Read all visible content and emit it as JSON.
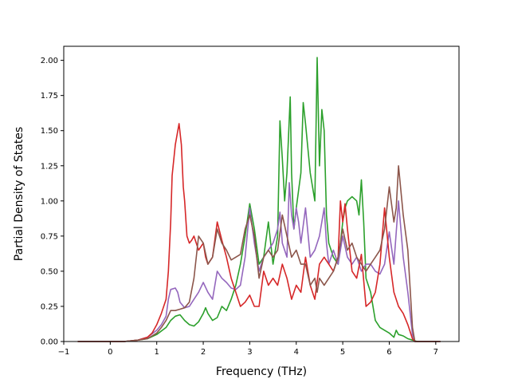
{
  "chart_data": {
    "type": "line",
    "xlabel": "Frequency (THz)",
    "ylabel": "Partial Density of States",
    "xlim": [
      -1.0,
      7.5
    ],
    "ylim": [
      0.0,
      2.1
    ],
    "xticks": [
      -1,
      0,
      1,
      2,
      3,
      4,
      5,
      6,
      7
    ],
    "xtick_labels": [
      "−1",
      "0",
      "1",
      "2",
      "3",
      "4",
      "5",
      "6",
      "7"
    ],
    "yticks": [
      0.0,
      0.25,
      0.5,
      0.75,
      1.0,
      1.25,
      1.5,
      1.75,
      2.0
    ],
    "ytick_labels": [
      "0.00",
      "0.25",
      "0.50",
      "0.75",
      "1.00",
      "1.25",
      "1.50",
      "1.75",
      "2.00"
    ],
    "grid": false,
    "series": [
      {
        "color": "#2ca02c",
        "points": [
          [
            -0.7,
            0
          ],
          [
            0.3,
            0
          ],
          [
            0.6,
            0.01
          ],
          [
            0.8,
            0.02
          ],
          [
            1.0,
            0.05
          ],
          [
            1.2,
            0.1
          ],
          [
            1.3,
            0.15
          ],
          [
            1.4,
            0.18
          ],
          [
            1.5,
            0.19
          ],
          [
            1.6,
            0.15
          ],
          [
            1.7,
            0.12
          ],
          [
            1.8,
            0.11
          ],
          [
            1.9,
            0.14
          ],
          [
            2.0,
            0.2
          ],
          [
            2.05,
            0.24
          ],
          [
            2.1,
            0.2
          ],
          [
            2.2,
            0.15
          ],
          [
            2.3,
            0.17
          ],
          [
            2.4,
            0.25
          ],
          [
            2.5,
            0.22
          ],
          [
            2.6,
            0.3
          ],
          [
            2.7,
            0.4
          ],
          [
            2.8,
            0.55
          ],
          [
            2.9,
            0.75
          ],
          [
            3.0,
            0.98
          ],
          [
            3.1,
            0.8
          ],
          [
            3.2,
            0.55
          ],
          [
            3.3,
            0.6
          ],
          [
            3.4,
            0.85
          ],
          [
            3.5,
            0.55
          ],
          [
            3.6,
            0.75
          ],
          [
            3.65,
            1.57
          ],
          [
            3.7,
            1.3
          ],
          [
            3.75,
            1.0
          ],
          [
            3.8,
            1.2
          ],
          [
            3.87,
            1.74
          ],
          [
            3.9,
            1.2
          ],
          [
            3.95,
            0.8
          ],
          [
            4.0,
            0.95
          ],
          [
            4.1,
            1.2
          ],
          [
            4.15,
            1.7
          ],
          [
            4.2,
            1.55
          ],
          [
            4.3,
            1.2
          ],
          [
            4.4,
            1.0
          ],
          [
            4.45,
            2.02
          ],
          [
            4.5,
            1.25
          ],
          [
            4.55,
            1.65
          ],
          [
            4.6,
            1.5
          ],
          [
            4.65,
            0.9
          ],
          [
            4.7,
            0.7
          ],
          [
            4.8,
            0.6
          ],
          [
            4.9,
            0.55
          ],
          [
            5.0,
            0.85
          ],
          [
            5.05,
            0.95
          ],
          [
            5.1,
            1.0
          ],
          [
            5.2,
            1.03
          ],
          [
            5.3,
            1.0
          ],
          [
            5.35,
            0.9
          ],
          [
            5.4,
            1.15
          ],
          [
            5.45,
            0.85
          ],
          [
            5.5,
            0.45
          ],
          [
            5.6,
            0.35
          ],
          [
            5.7,
            0.15
          ],
          [
            5.8,
            0.1
          ],
          [
            5.9,
            0.08
          ],
          [
            6.0,
            0.06
          ],
          [
            6.1,
            0.03
          ],
          [
            6.15,
            0.08
          ],
          [
            6.2,
            0.05
          ],
          [
            6.3,
            0.04
          ],
          [
            6.4,
            0.02
          ],
          [
            6.5,
            0.01
          ],
          [
            6.6,
            0
          ],
          [
            7.1,
            0
          ]
        ]
      },
      {
        "color": "#9467bd",
        "points": [
          [
            -0.7,
            0
          ],
          [
            0.3,
            0
          ],
          [
            0.6,
            0.01
          ],
          [
            0.8,
            0.03
          ],
          [
            1.0,
            0.08
          ],
          [
            1.1,
            0.12
          ],
          [
            1.2,
            0.18
          ],
          [
            1.25,
            0.3
          ],
          [
            1.3,
            0.37
          ],
          [
            1.4,
            0.38
          ],
          [
            1.45,
            0.35
          ],
          [
            1.5,
            0.28
          ],
          [
            1.6,
            0.24
          ],
          [
            1.7,
            0.25
          ],
          [
            1.8,
            0.3
          ],
          [
            1.9,
            0.35
          ],
          [
            2.0,
            0.42
          ],
          [
            2.1,
            0.35
          ],
          [
            2.2,
            0.3
          ],
          [
            2.3,
            0.5
          ],
          [
            2.4,
            0.45
          ],
          [
            2.5,
            0.42
          ],
          [
            2.6,
            0.38
          ],
          [
            2.7,
            0.37
          ],
          [
            2.8,
            0.4
          ],
          [
            2.9,
            0.6
          ],
          [
            3.0,
            0.95
          ],
          [
            3.1,
            0.7
          ],
          [
            3.2,
            0.5
          ],
          [
            3.3,
            0.6
          ],
          [
            3.4,
            0.65
          ],
          [
            3.5,
            0.7
          ],
          [
            3.6,
            0.8
          ],
          [
            3.65,
            0.92
          ],
          [
            3.7,
            0.7
          ],
          [
            3.8,
            0.6
          ],
          [
            3.85,
            1.13
          ],
          [
            3.9,
            0.9
          ],
          [
            3.95,
            0.8
          ],
          [
            4.0,
            0.95
          ],
          [
            4.05,
            0.85
          ],
          [
            4.1,
            0.7
          ],
          [
            4.2,
            0.95
          ],
          [
            4.3,
            0.6
          ],
          [
            4.4,
            0.65
          ],
          [
            4.5,
            0.75
          ],
          [
            4.6,
            0.95
          ],
          [
            4.65,
            0.7
          ],
          [
            4.7,
            0.55
          ],
          [
            4.8,
            0.65
          ],
          [
            4.9,
            0.55
          ],
          [
            5.0,
            0.75
          ],
          [
            5.1,
            0.6
          ],
          [
            5.2,
            0.55
          ],
          [
            5.3,
            0.6
          ],
          [
            5.4,
            0.5
          ],
          [
            5.5,
            0.55
          ],
          [
            5.6,
            0.55
          ],
          [
            5.7,
            0.5
          ],
          [
            5.8,
            0.48
          ],
          [
            5.9,
            0.55
          ],
          [
            6.0,
            0.78
          ],
          [
            6.1,
            0.55
          ],
          [
            6.2,
            1.0
          ],
          [
            6.3,
            0.6
          ],
          [
            6.4,
            0.35
          ],
          [
            6.5,
            0.05
          ],
          [
            6.55,
            0
          ],
          [
            7.1,
            0
          ]
        ]
      },
      {
        "color": "#d62728",
        "points": [
          [
            -0.7,
            0
          ],
          [
            0.3,
            0
          ],
          [
            0.6,
            0.01
          ],
          [
            0.8,
            0.03
          ],
          [
            0.9,
            0.06
          ],
          [
            1.0,
            0.12
          ],
          [
            1.1,
            0.2
          ],
          [
            1.2,
            0.3
          ],
          [
            1.25,
            0.5
          ],
          [
            1.3,
            0.85
          ],
          [
            1.33,
            1.18
          ],
          [
            1.4,
            1.4
          ],
          [
            1.48,
            1.55
          ],
          [
            1.53,
            1.4
          ],
          [
            1.57,
            1.1
          ],
          [
            1.6,
            1.0
          ],
          [
            1.65,
            0.75
          ],
          [
            1.7,
            0.7
          ],
          [
            1.75,
            0.72
          ],
          [
            1.8,
            0.75
          ],
          [
            1.85,
            0.7
          ],
          [
            1.9,
            0.65
          ],
          [
            2.0,
            0.7
          ],
          [
            2.05,
            0.6
          ],
          [
            2.1,
            0.55
          ],
          [
            2.2,
            0.6
          ],
          [
            2.3,
            0.85
          ],
          [
            2.4,
            0.72
          ],
          [
            2.5,
            0.6
          ],
          [
            2.6,
            0.45
          ],
          [
            2.7,
            0.35
          ],
          [
            2.8,
            0.25
          ],
          [
            2.9,
            0.28
          ],
          [
            3.0,
            0.33
          ],
          [
            3.1,
            0.25
          ],
          [
            3.2,
            0.25
          ],
          [
            3.3,
            0.5
          ],
          [
            3.4,
            0.4
          ],
          [
            3.5,
            0.45
          ],
          [
            3.6,
            0.4
          ],
          [
            3.7,
            0.55
          ],
          [
            3.8,
            0.45
          ],
          [
            3.9,
            0.3
          ],
          [
            4.0,
            0.4
          ],
          [
            4.1,
            0.35
          ],
          [
            4.2,
            0.6
          ],
          [
            4.3,
            0.4
          ],
          [
            4.4,
            0.3
          ],
          [
            4.5,
            0.55
          ],
          [
            4.6,
            0.6
          ],
          [
            4.7,
            0.55
          ],
          [
            4.8,
            0.5
          ],
          [
            4.9,
            0.6
          ],
          [
            4.95,
            1.0
          ],
          [
            5.0,
            0.85
          ],
          [
            5.05,
            0.98
          ],
          [
            5.1,
            0.8
          ],
          [
            5.2,
            0.5
          ],
          [
            5.3,
            0.45
          ],
          [
            5.4,
            0.62
          ],
          [
            5.5,
            0.25
          ],
          [
            5.6,
            0.28
          ],
          [
            5.7,
            0.35
          ],
          [
            5.8,
            0.55
          ],
          [
            5.9,
            0.95
          ],
          [
            6.0,
            0.6
          ],
          [
            6.1,
            0.35
          ],
          [
            6.2,
            0.25
          ],
          [
            6.3,
            0.2
          ],
          [
            6.4,
            0.12
          ],
          [
            6.5,
            0.02
          ],
          [
            6.55,
            0
          ],
          [
            7.1,
            0
          ]
        ]
      },
      {
        "color": "#8c564b",
        "points": [
          [
            -0.7,
            0
          ],
          [
            0.3,
            0
          ],
          [
            0.6,
            0.01
          ],
          [
            0.8,
            0.02
          ],
          [
            1.0,
            0.06
          ],
          [
            1.1,
            0.1
          ],
          [
            1.2,
            0.15
          ],
          [
            1.3,
            0.22
          ],
          [
            1.4,
            0.22
          ],
          [
            1.5,
            0.23
          ],
          [
            1.6,
            0.24
          ],
          [
            1.7,
            0.28
          ],
          [
            1.8,
            0.45
          ],
          [
            1.9,
            0.75
          ],
          [
            2.0,
            0.7
          ],
          [
            2.1,
            0.55
          ],
          [
            2.2,
            0.6
          ],
          [
            2.3,
            0.8
          ],
          [
            2.4,
            0.7
          ],
          [
            2.5,
            0.65
          ],
          [
            2.6,
            0.58
          ],
          [
            2.7,
            0.6
          ],
          [
            2.8,
            0.62
          ],
          [
            2.9,
            0.8
          ],
          [
            3.0,
            0.9
          ],
          [
            3.1,
            0.75
          ],
          [
            3.2,
            0.45
          ],
          [
            3.3,
            0.6
          ],
          [
            3.4,
            0.65
          ],
          [
            3.5,
            0.6
          ],
          [
            3.6,
            0.65
          ],
          [
            3.7,
            0.9
          ],
          [
            3.8,
            0.75
          ],
          [
            3.9,
            0.6
          ],
          [
            4.0,
            0.65
          ],
          [
            4.1,
            0.55
          ],
          [
            4.2,
            0.55
          ],
          [
            4.3,
            0.4
          ],
          [
            4.4,
            0.45
          ],
          [
            4.45,
            0.35
          ],
          [
            4.5,
            0.45
          ],
          [
            4.6,
            0.4
          ],
          [
            4.7,
            0.45
          ],
          [
            4.8,
            0.5
          ],
          [
            4.9,
            0.6
          ],
          [
            5.0,
            0.8
          ],
          [
            5.1,
            0.65
          ],
          [
            5.2,
            0.7
          ],
          [
            5.3,
            0.6
          ],
          [
            5.4,
            0.55
          ],
          [
            5.5,
            0.5
          ],
          [
            5.6,
            0.55
          ],
          [
            5.7,
            0.6
          ],
          [
            5.8,
            0.65
          ],
          [
            5.9,
            0.8
          ],
          [
            6.0,
            1.1
          ],
          [
            6.1,
            0.85
          ],
          [
            6.15,
            0.95
          ],
          [
            6.2,
            1.25
          ],
          [
            6.3,
            0.9
          ],
          [
            6.4,
            0.65
          ],
          [
            6.5,
            0.1
          ],
          [
            6.55,
            0
          ],
          [
            7.1,
            0
          ]
        ]
      }
    ]
  }
}
